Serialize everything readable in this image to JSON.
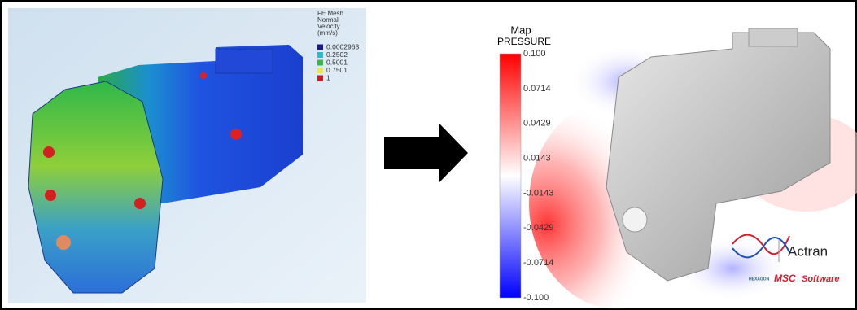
{
  "left_panel": {
    "legend": {
      "title_lines": [
        "FE Mesh",
        "Normal",
        "Velocity",
        "(mm/s)"
      ],
      "items": [
        "0.0002963",
        "0.2502",
        "0.5001",
        "0.7501",
        "1"
      ]
    }
  },
  "right_panel": {
    "colorbar": {
      "title": "Map",
      "subtitle": "PRESSURE",
      "ticks": [
        "0.100",
        "0.0714",
        "0.0429",
        "0.0143",
        "-0.0143",
        "-0.0429",
        "-0.0714",
        "-0.100"
      ]
    },
    "logos": {
      "product": "Actran",
      "company_left": "MSC",
      "company_right": "Software",
      "partner": "HEXAGON"
    }
  }
}
